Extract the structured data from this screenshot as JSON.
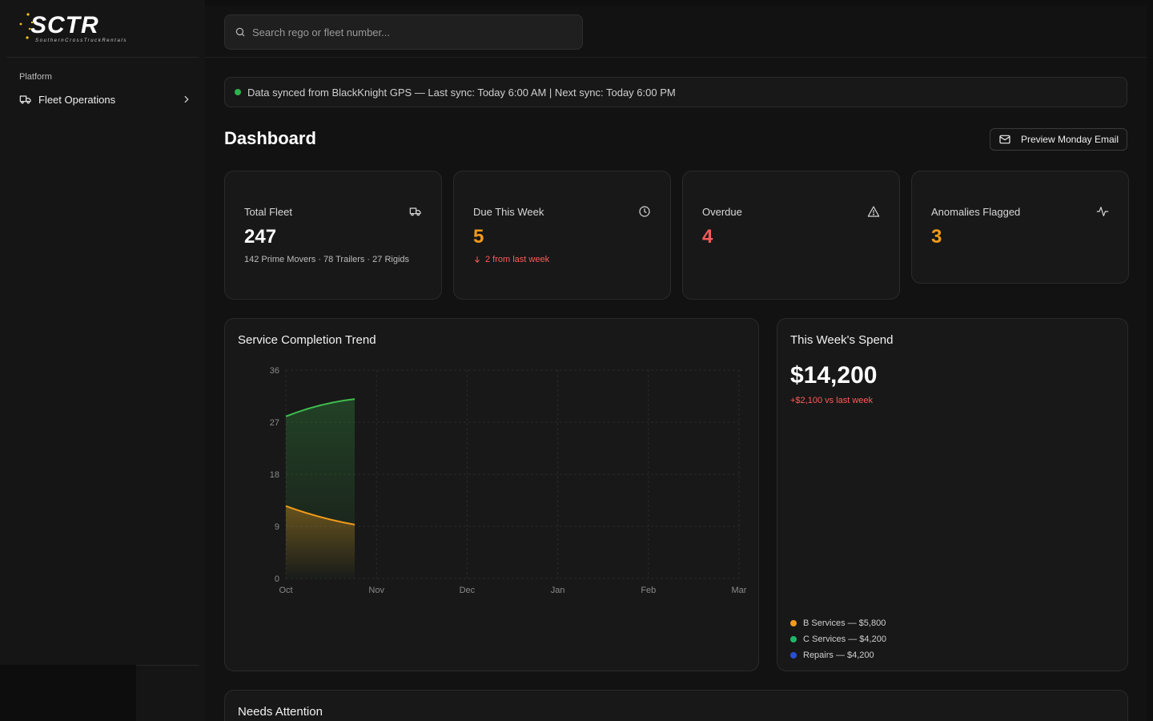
{
  "brand": {
    "logo_text": "SCTR",
    "logo_subtitle": "SouthernCrossTruckRentals"
  },
  "sidebar": {
    "section_label": "Platform",
    "items": [
      {
        "label": "Fleet Operations",
        "icon": "truck-icon"
      }
    ]
  },
  "search": {
    "placeholder": "Search rego or fleet number..."
  },
  "sync": {
    "status_color": "#2bb24c",
    "text": "Data synced from BlackKnight GPS — Last sync: Today 6:00 AM | Next sync: Today 6:00 PM"
  },
  "page": {
    "title": "Dashboard",
    "email_button": "Preview Monday Email"
  },
  "stats": [
    {
      "label": "Total Fleet",
      "value": "247",
      "sub": "142 Prime Movers · 78 Trailers · 27 Rigids",
      "icon": "truck-icon",
      "value_color": "#ffffff",
      "sub_color": "#bdbdbd"
    },
    {
      "label": "Due This Week",
      "value": "5",
      "sub": "2 from last week",
      "icon": "clock-icon",
      "value_color": "#f29a1a",
      "sub_color": "#ff5a5a"
    },
    {
      "label": "Overdue",
      "value": "4",
      "sub": "",
      "icon": "alert-triangle-icon",
      "value_color": "#ff5a5a"
    },
    {
      "label": "Anomalies Flagged",
      "value": "3",
      "sub": "",
      "icon": "activity-icon",
      "value_color": "#f29a1a"
    }
  ],
  "trend_card": {
    "title": "Service Completion Trend"
  },
  "chart_data": {
    "type": "area",
    "title": "Service Completion Trend",
    "categories": [
      "Oct",
      "Nov",
      "Dec",
      "Jan",
      "Feb",
      "Mar"
    ],
    "ylim": [
      0,
      36
    ],
    "yticks": [
      "0",
      "9",
      "18",
      "27",
      "36"
    ],
    "grid": true,
    "x": [
      0,
      0.76
    ],
    "series": [
      {
        "values": [
          28,
          31
        ],
        "color": "#3fbf4f"
      },
      {
        "values": [
          12.5,
          9.3
        ],
        "color": "#f29a1a"
      }
    ]
  },
  "spend_card": {
    "title": "This Week's Spend",
    "value": "$14,200",
    "delta": "+$2,100 vs last week",
    "legend": [
      {
        "label": "B Services — $5,800",
        "color": "#f29a1a"
      },
      {
        "label": "C Services — $4,200",
        "color": "#1fb86a"
      },
      {
        "label": "Repairs — $4,200",
        "color": "#2a4fd6"
      }
    ]
  },
  "attention_card": {
    "title": "Needs Attention"
  }
}
